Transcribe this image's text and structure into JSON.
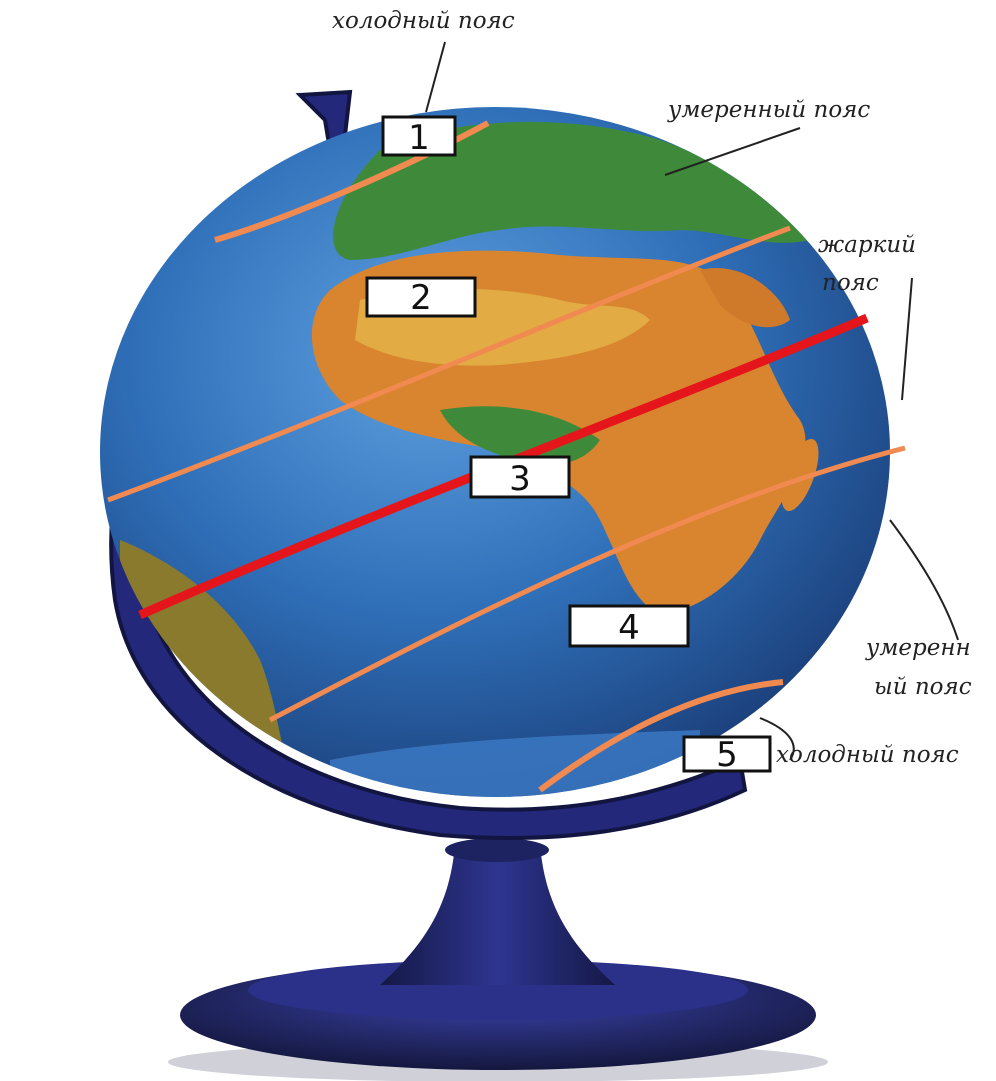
{
  "diagram": {
    "labels": {
      "cold_north": "холодный пояс",
      "temperate_north": "умеренный пояс",
      "hot_line1": "жаркий",
      "hot_line2": "пояс",
      "temperate_south_line1": "умеренн",
      "temperate_south_line2": "ый пояс",
      "cold_south": "холодный пояс"
    },
    "zone_numbers": [
      "1",
      "2",
      "3",
      "4",
      "5"
    ],
    "colors": {
      "ocean": "#2f6fb8",
      "land_green": "#3f8a3a",
      "land_orange": "#d9842f",
      "boundary_line": "#f08a50",
      "equator": "#e4161b",
      "stand": "#2a2f7a"
    }
  }
}
